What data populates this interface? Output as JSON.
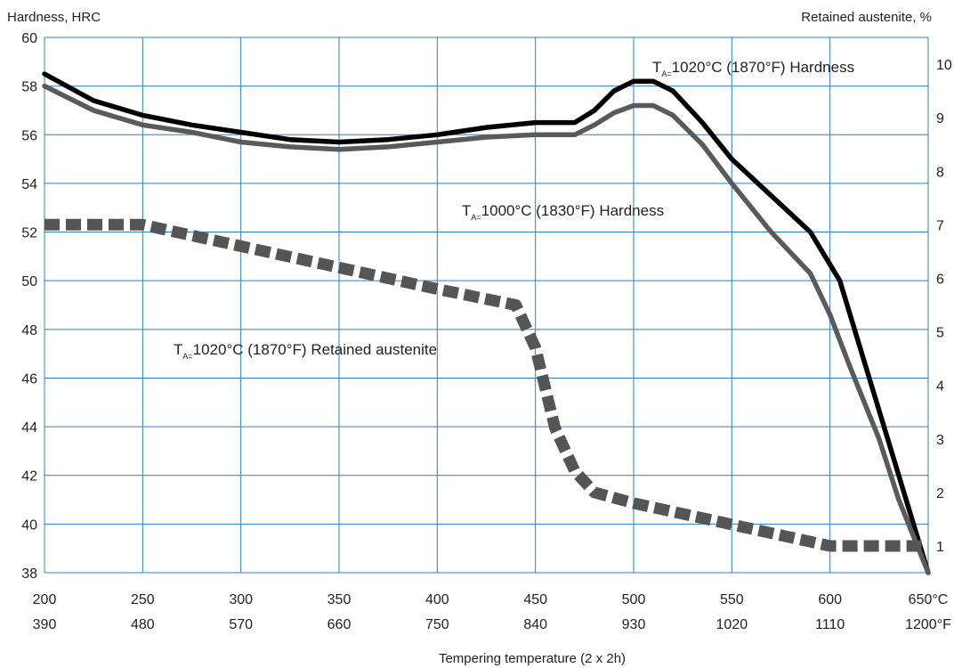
{
  "chart_data": {
    "type": "line",
    "title": "",
    "y_left_label": "Hardness, HRC",
    "y_right_label": "Retained austenite,  %",
    "xlabel": "Tempering temperature  (2 x 2h)",
    "xlim_c": [
      200,
      650
    ],
    "ylim_left": [
      38,
      60
    ],
    "ylim_right": [
      0.5,
      10.5
    ],
    "grid": true,
    "x_ticks_c": [
      "200",
      "250",
      "300",
      "350",
      "400",
      "450",
      "500",
      "550",
      "600",
      "650°C"
    ],
    "x_ticks_f": [
      "390",
      "480",
      "570",
      "660",
      "750",
      "840",
      "930",
      "1020",
      "1110",
      "1200°F"
    ],
    "y_left_ticks": [
      "38",
      "40",
      "42",
      "44",
      "46",
      "48",
      "50",
      "52",
      "54",
      "56",
      "58",
      "60"
    ],
    "y_right_ticks": [
      "1",
      "2",
      "3",
      "4",
      "5",
      "6",
      "7",
      "8",
      "9",
      "10"
    ],
    "series": [
      {
        "name": "TA=1020°C (1870°F) Hardness",
        "label_sub": "A=",
        "label_main": "1020°C (1870°F) Hardness",
        "color": "#000000",
        "style": "solid",
        "axis": "left",
        "x": [
          200,
          225,
          250,
          275,
          300,
          325,
          350,
          375,
          400,
          425,
          450,
          470,
          480,
          490,
          500,
          510,
          520,
          535,
          550,
          570,
          590,
          605,
          620,
          635,
          650
        ],
        "y": [
          58.5,
          57.4,
          56.8,
          56.4,
          56.1,
          55.8,
          55.7,
          55.8,
          56.0,
          56.3,
          56.5,
          56.5,
          57.0,
          57.8,
          58.2,
          58.2,
          57.8,
          56.5,
          55.0,
          53.5,
          52.0,
          50.0,
          46.0,
          42.0,
          38.0
        ]
      },
      {
        "name": "TA=1000°C (1830°F) Hardness",
        "label_sub": "A=",
        "label_main": "1000°C (1830°F) Hardness",
        "color": "#5a5a5a",
        "style": "solid",
        "axis": "left",
        "x": [
          200,
          225,
          250,
          275,
          300,
          325,
          350,
          375,
          400,
          425,
          450,
          470,
          480,
          490,
          500,
          510,
          520,
          535,
          550,
          570,
          590,
          600,
          610,
          625,
          635,
          650
        ],
        "y": [
          58.0,
          57.0,
          56.4,
          56.1,
          55.7,
          55.5,
          55.4,
          55.5,
          55.7,
          55.9,
          56.0,
          56.0,
          56.4,
          56.9,
          57.2,
          57.2,
          56.8,
          55.6,
          54.0,
          52.0,
          50.3,
          48.6,
          46.5,
          43.5,
          41.0,
          38.0
        ]
      },
      {
        "name": "TA=1020°C (1870°F) Retained austenite",
        "label_sub": "A=",
        "label_main": "1020°C (1870°F) Retained austenite",
        "color": "#555555",
        "style": "dashed",
        "axis": "right",
        "x": [
          200,
          250,
          300,
          350,
          400,
          440,
          450,
          460,
          470,
          480,
          500,
          550,
          600,
          650
        ],
        "y": [
          7.0,
          7.0,
          6.6,
          6.2,
          5.8,
          5.5,
          4.7,
          3.2,
          2.4,
          2.0,
          1.8,
          1.4,
          1.0,
          1.0
        ]
      }
    ]
  }
}
